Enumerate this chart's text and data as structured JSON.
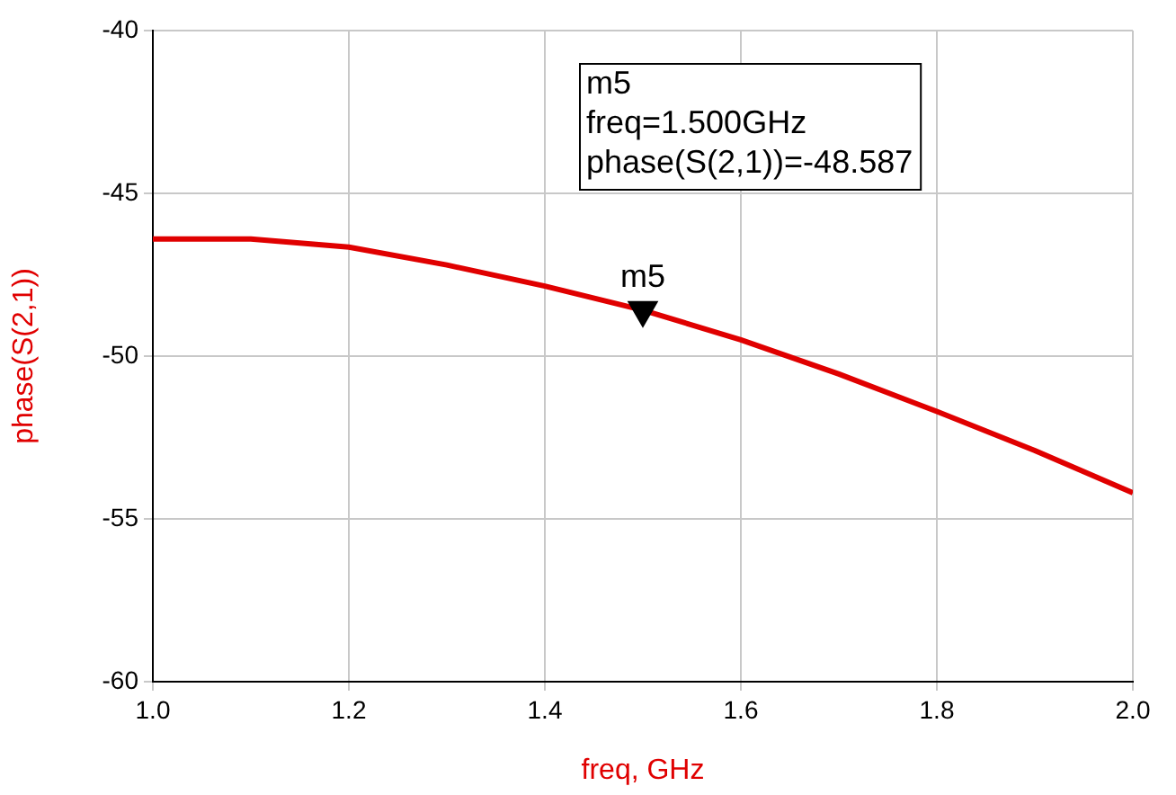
{
  "chart_data": {
    "type": "line",
    "xlabel": "freq, GHz",
    "ylabel": "phase(S(2,1))",
    "x": [
      1.0,
      1.1,
      1.2,
      1.3,
      1.4,
      1.5,
      1.6,
      1.7,
      1.8,
      1.9,
      2.0
    ],
    "series": [
      {
        "color": "#e00000",
        "values": [
          -46.4,
          -46.4,
          -46.65,
          -47.2,
          -47.85,
          -48.587,
          -49.5,
          -50.55,
          -51.7,
          -52.9,
          -54.2
        ]
      },
      {
        "type": "scatter",
        "name": "m5",
        "color": "#000000",
        "marker": "triangle",
        "x": [
          1.5
        ],
        "values": [
          -48.587
        ]
      }
    ],
    "xlim": [
      1.0,
      2.0
    ],
    "xticks": [
      {
        "value": 1.0,
        "label": "1.0"
      },
      {
        "value": 1.2,
        "label": "1.2"
      },
      {
        "value": 1.4,
        "label": "1.4"
      },
      {
        "value": 1.6,
        "label": "1.6"
      },
      {
        "value": 1.8,
        "label": "1.8"
      },
      {
        "value": 2.0,
        "label": "2.0"
      }
    ],
    "ylim": [
      -60,
      -40
    ],
    "yticks": [
      -60,
      -55,
      -50,
      -45,
      -40
    ],
    "annotations": [
      "m5\nfreq=1.500GHz\nphase(S(2,1))=-48.587"
    ],
    "grid": true,
    "legend": false,
    "marker": "none",
    "line_style": "solid"
  }
}
